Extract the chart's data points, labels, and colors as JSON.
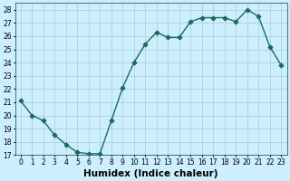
{
  "x": [
    0,
    1,
    2,
    3,
    4,
    5,
    6,
    7,
    8,
    9,
    10,
    11,
    12,
    13,
    14,
    15,
    16,
    17,
    18,
    19,
    20,
    21,
    22,
    23
  ],
  "y": [
    21.1,
    20.0,
    19.6,
    18.5,
    17.8,
    17.2,
    17.1,
    17.1,
    19.6,
    22.1,
    24.0,
    25.4,
    26.3,
    25.9,
    25.9,
    27.1,
    27.4,
    27.4,
    27.4,
    27.1,
    28.0,
    27.5,
    25.2,
    23.8
  ],
  "line_color": "#1a6b5a",
  "marker": "D",
  "markersize": 2.5,
  "linewidth": 1.0,
  "background_color": "#cceeff",
  "grid_color": "#aacccc",
  "xlabel": "Humidex (Indice chaleur)",
  "ylim": [
    17,
    28.5
  ],
  "xlim": [
    -0.5,
    23.5
  ],
  "yticks": [
    17,
    18,
    19,
    20,
    21,
    22,
    23,
    24,
    25,
    26,
    27,
    28
  ],
  "xtick_labels": [
    "0",
    "1",
    "2",
    "3",
    "4",
    "5",
    "6",
    "7",
    "8",
    "9",
    "10",
    "11",
    "12",
    "13",
    "14",
    "15",
    "16",
    "17",
    "18",
    "19",
    "20",
    "21",
    "22",
    "23"
  ],
  "tick_fontsize": 5.5,
  "xlabel_fontsize": 7.5
}
